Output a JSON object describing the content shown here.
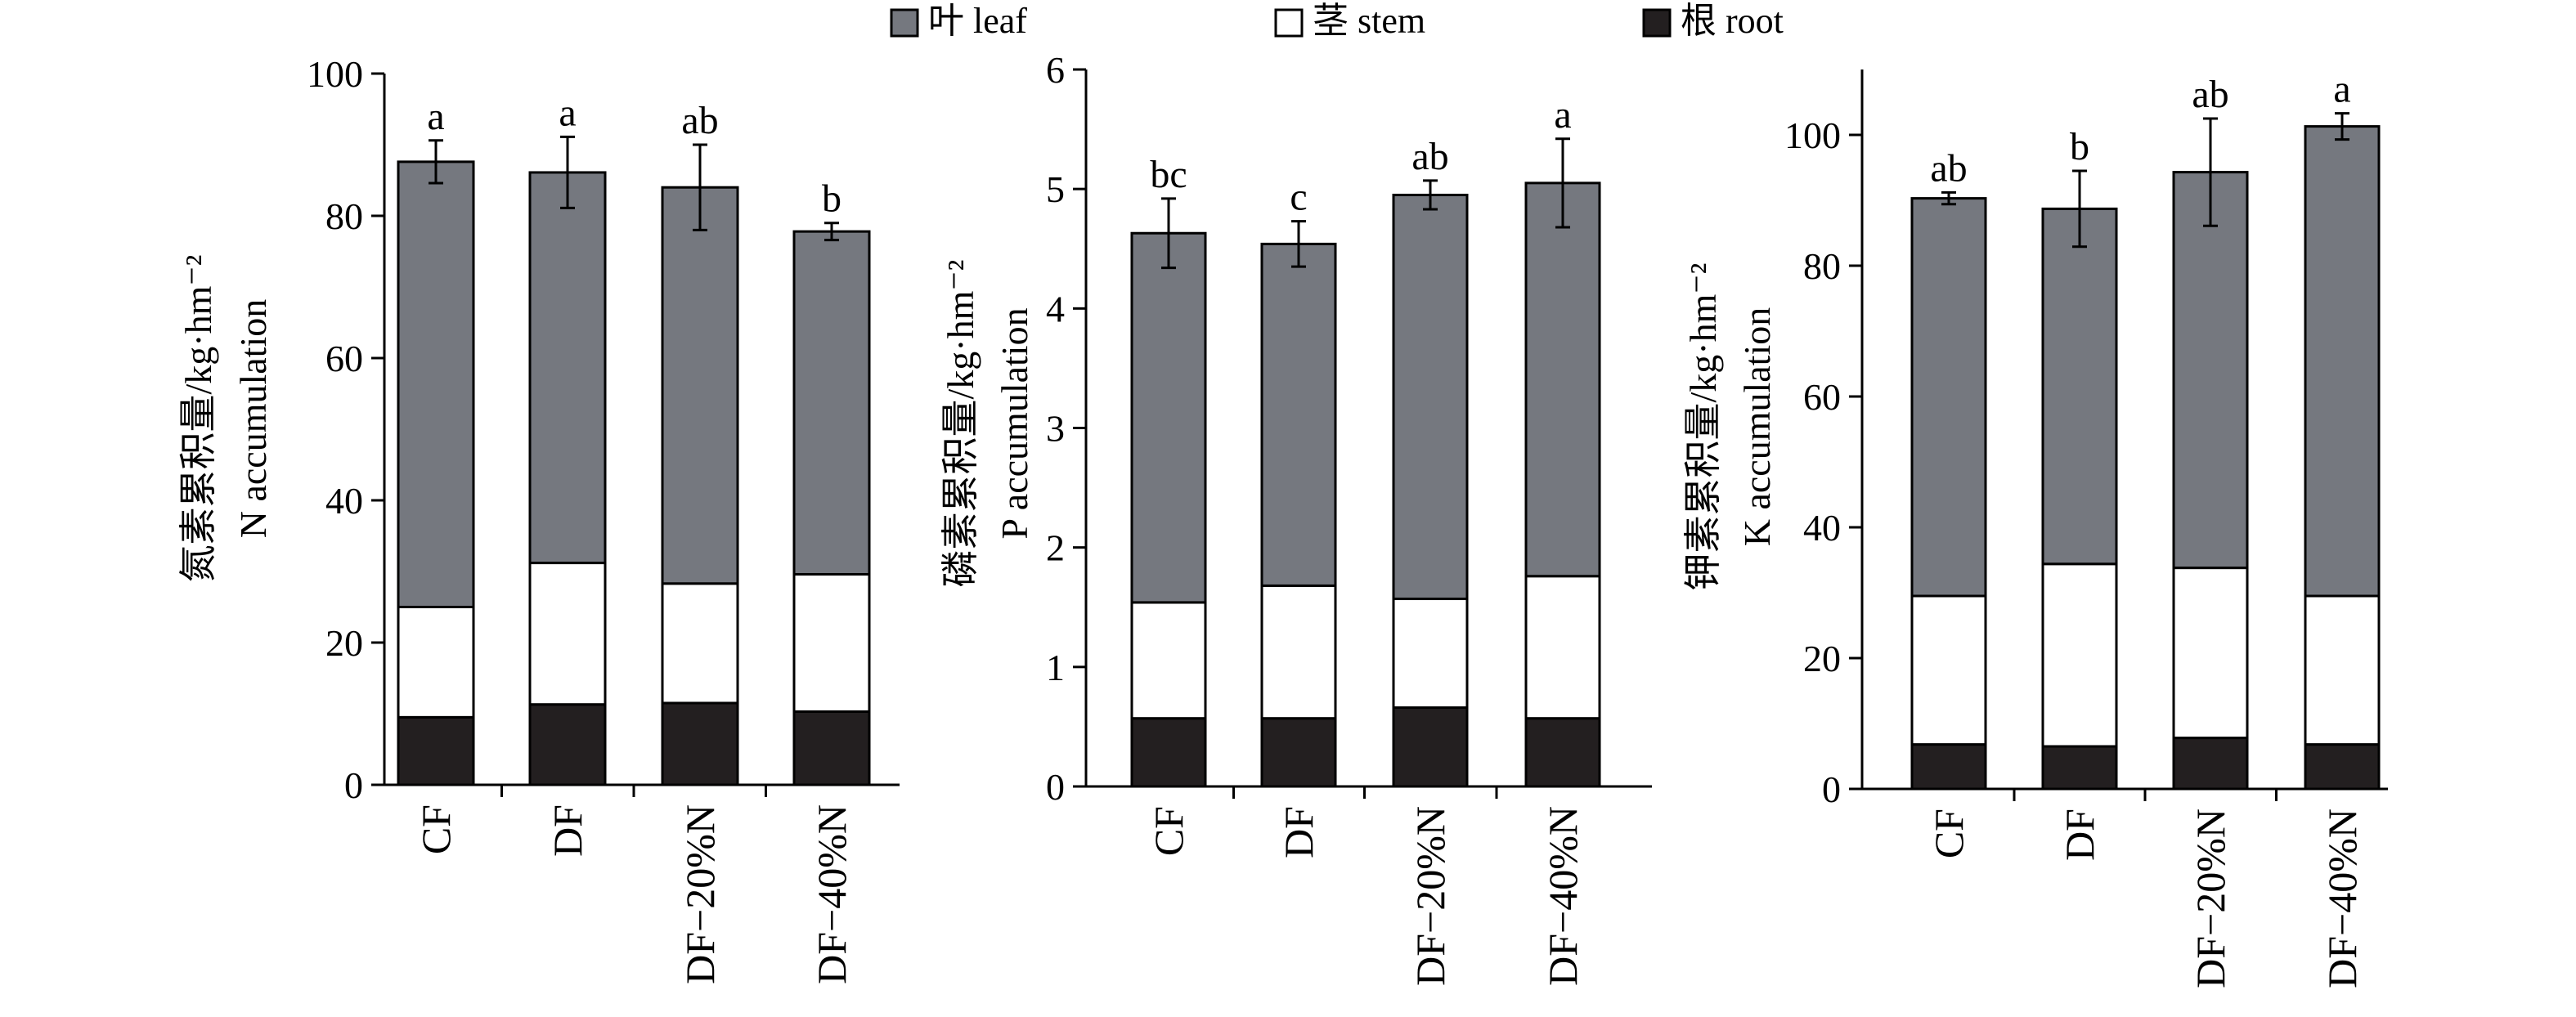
{
  "legend": {
    "items": [
      {
        "label": "叶 leaf",
        "color": "#75787f"
      },
      {
        "label": "茎 stem",
        "color": "#ffffff"
      },
      {
        "label": "根 root",
        "color": "#231f20"
      }
    ]
  },
  "chart_data": [
    {
      "type": "bar",
      "stacked": true,
      "ylabel_cn": "氮素累积量/kg·hm⁻²",
      "ylabel_en": "N accumulation",
      "ylim": [
        0,
        100
      ],
      "yticks": [
        0,
        20,
        40,
        60,
        80,
        100
      ],
      "categories": [
        "CF",
        "DF",
        "DF−20%N",
        "DF−40%N"
      ],
      "series": [
        {
          "name": "根 root",
          "values": [
            9.5,
            11.3,
            11.5,
            10.3
          ]
        },
        {
          "name": "茎 stem",
          "values": [
            15.5,
            19.9,
            16.8,
            19.3
          ]
        },
        {
          "name": "叶 leaf",
          "values": [
            62.6,
            54.9,
            55.7,
            48.2
          ]
        }
      ],
      "totals": [
        87.6,
        86.1,
        84.0,
        77.8
      ],
      "errors": [
        3.0,
        5.0,
        6.0,
        1.2
      ],
      "significance": [
        "a",
        "a",
        "ab",
        "b"
      ]
    },
    {
      "type": "bar",
      "stacked": true,
      "ylabel_cn": "磷素累积量/kg·hm⁻²",
      "ylabel_en": "P accumulation",
      "ylim": [
        0,
        6
      ],
      "yticks": [
        0,
        1,
        2,
        3,
        4,
        5,
        6
      ],
      "categories": [
        "CF",
        "DF",
        "DF−20%N",
        "DF−40%N"
      ],
      "series": [
        {
          "name": "根 root",
          "values": [
            0.57,
            0.57,
            0.66,
            0.57
          ]
        },
        {
          "name": "茎 stem",
          "values": [
            0.97,
            1.11,
            0.91,
            1.19
          ]
        },
        {
          "name": "叶 leaf",
          "values": [
            3.09,
            2.86,
            3.38,
            3.29
          ]
        }
      ],
      "totals": [
        4.63,
        4.54,
        4.95,
        5.05
      ],
      "errors": [
        0.29,
        0.19,
        0.12,
        0.37
      ],
      "significance": [
        "bc",
        "c",
        "ab",
        "a"
      ]
    },
    {
      "type": "bar",
      "stacked": true,
      "ylabel_cn": "钾素累积量/kg·hm⁻²",
      "ylabel_en": "K accumulation",
      "ylim": [
        0,
        110
      ],
      "yticks": [
        0,
        20,
        40,
        60,
        80,
        100
      ],
      "categories": [
        "CF",
        "DF",
        "DF−20%N",
        "DF−40%N"
      ],
      "series": [
        {
          "name": "根 root",
          "values": [
            6.8,
            6.5,
            7.8,
            6.8
          ]
        },
        {
          "name": "茎 stem",
          "values": [
            22.7,
            27.9,
            26.0,
            22.7
          ]
        },
        {
          "name": "叶 leaf",
          "values": [
            60.8,
            54.3,
            60.5,
            71.8
          ]
        }
      ],
      "totals": [
        90.3,
        88.7,
        94.3,
        101.3
      ],
      "errors": [
        0.9,
        5.8,
        8.2,
        2.0
      ],
      "significance": [
        "ab",
        "b",
        "ab",
        "a"
      ]
    }
  ]
}
